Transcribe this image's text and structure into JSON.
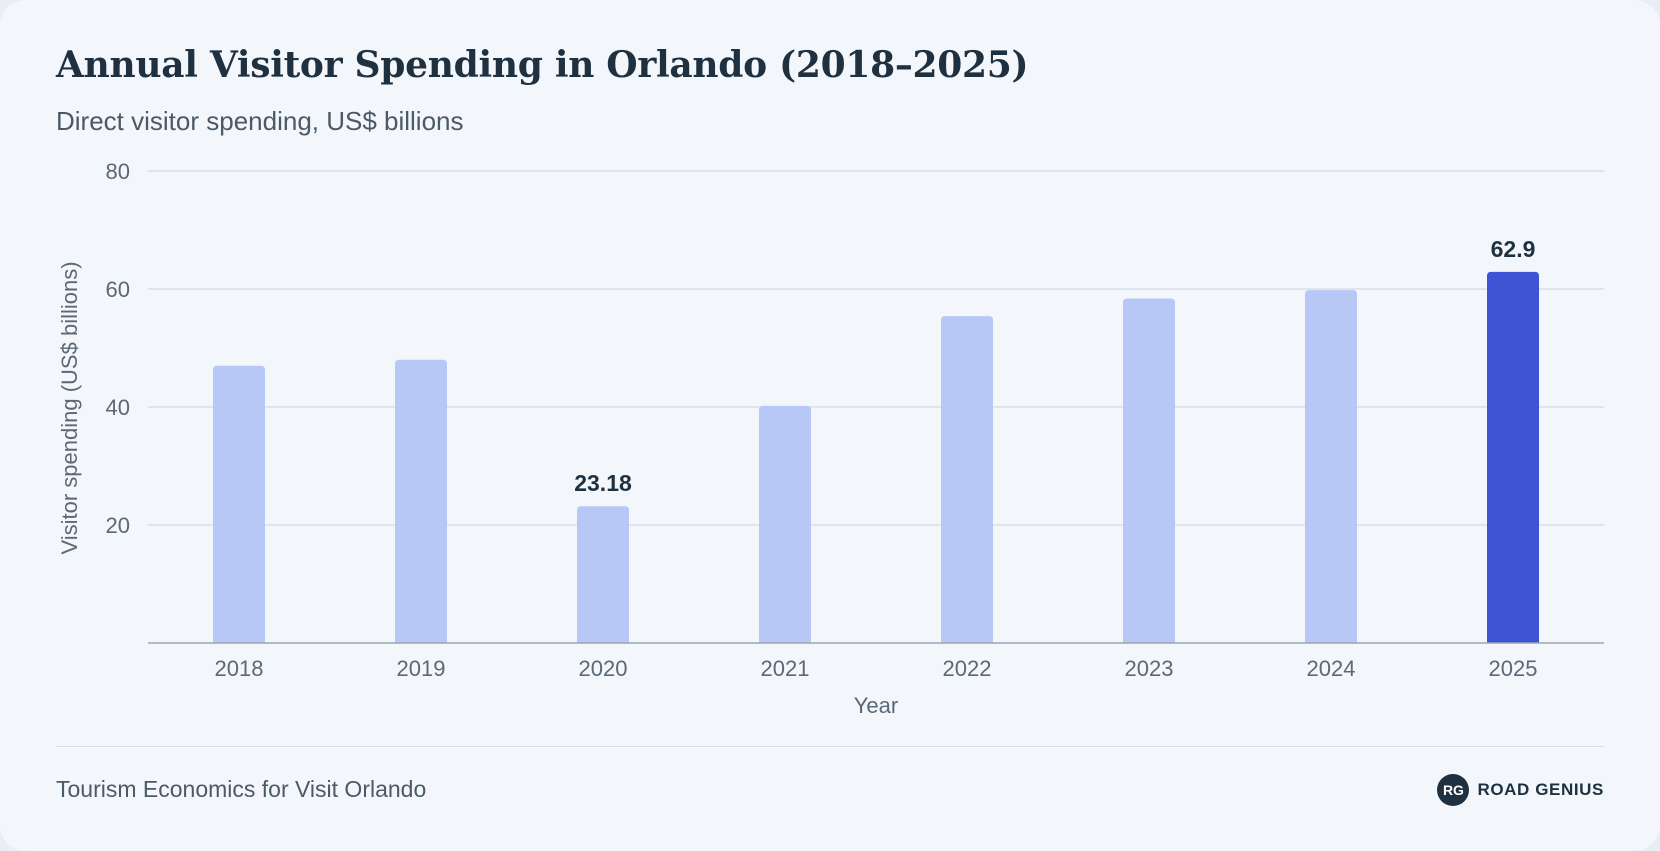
{
  "header": {
    "title": "Annual Visitor Spending in Orlando (2018–2025)",
    "subtitle": "Direct visitor spending, US$ billions"
  },
  "footer": {
    "source": "Tourism Economics for Visit Orlando",
    "brand_badge": "RG",
    "brand_name": "ROAD GENIUS"
  },
  "colors": {
    "bar": "#b8c8f6",
    "highlight_bar": "#3f54d4",
    "grid": "#d9dee5",
    "axis": "#9aa5b0",
    "tick_text": "#5b6875",
    "label_text": "#1f3140"
  },
  "chart_data": {
    "type": "bar",
    "title": "Annual Visitor Spending in Orlando (2018–2025)",
    "subtitle": "Direct visitor spending, US$ billions",
    "xlabel": "Year",
    "ylabel": "Visitor spending (US$ billions)",
    "categories": [
      "2018",
      "2019",
      "2020",
      "2021",
      "2022",
      "2023",
      "2024",
      "2025"
    ],
    "values": [
      47.0,
      48.0,
      23.18,
      40.2,
      55.4,
      58.4,
      59.8,
      62.9
    ],
    "ylim": [
      0,
      80
    ],
    "yticks": [
      20,
      40,
      60,
      80
    ],
    "data_labels": {
      "2020": "23.18",
      "2025": "62.9"
    },
    "highlight": "2025",
    "grid": true,
    "legend": "none"
  }
}
